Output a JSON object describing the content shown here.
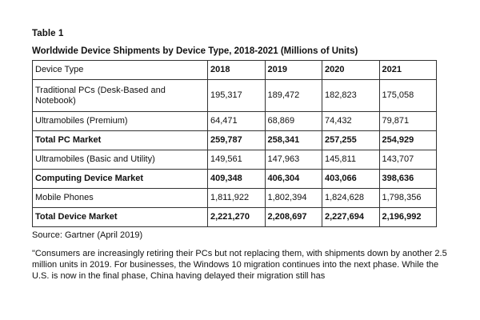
{
  "table_label": "Table 1",
  "table_title": "Worldwide Device Shipments by Device Type, 2018-2021 (Millions of Units)",
  "header": {
    "col0": "Device Type",
    "years": [
      "2018",
      "2019",
      "2020",
      "2021"
    ]
  },
  "rows": [
    {
      "label": "Traditional PCs (Desk-Based and Notebook)",
      "values": [
        "195,317",
        "189,472",
        "182,823",
        "175,058"
      ],
      "bold": false
    },
    {
      "label": "Ultramobiles (Premium)",
      "values": [
        "64,471",
        "68,869",
        "74,432",
        "79,871"
      ],
      "bold": false
    },
    {
      "label": "Total PC Market",
      "values": [
        "259,787",
        "258,341",
        "257,255",
        "254,929"
      ],
      "bold": true
    },
    {
      "label": "Ultramobiles (Basic and Utility)",
      "values": [
        "149,561",
        "147,963",
        "145,811",
        "143,707"
      ],
      "bold": false
    },
    {
      "label": "Computing Device Market",
      "values": [
        "409,348",
        "406,304",
        "403,066",
        "398,636"
      ],
      "bold": true
    },
    {
      "label": "Mobile Phones",
      "values": [
        "1,811,922",
        "1,802,394",
        "1,824,628",
        "1,798,356"
      ],
      "bold": false
    },
    {
      "label": "Total Device Market",
      "values": [
        "2,221,270",
        "2,208,697",
        "2,227,694",
        "2,196,992"
      ],
      "bold": true
    }
  ],
  "source": "Source: Gartner (April 2019)",
  "quote": "\"Consumers are increasingly retiring their PCs but not replacing them, with shipments down by another 2.5 million units in 2019. For businesses, the Windows 10 migration continues into the next phase. While the U.S. is now in the final phase, China having delayed their migration still has"
}
